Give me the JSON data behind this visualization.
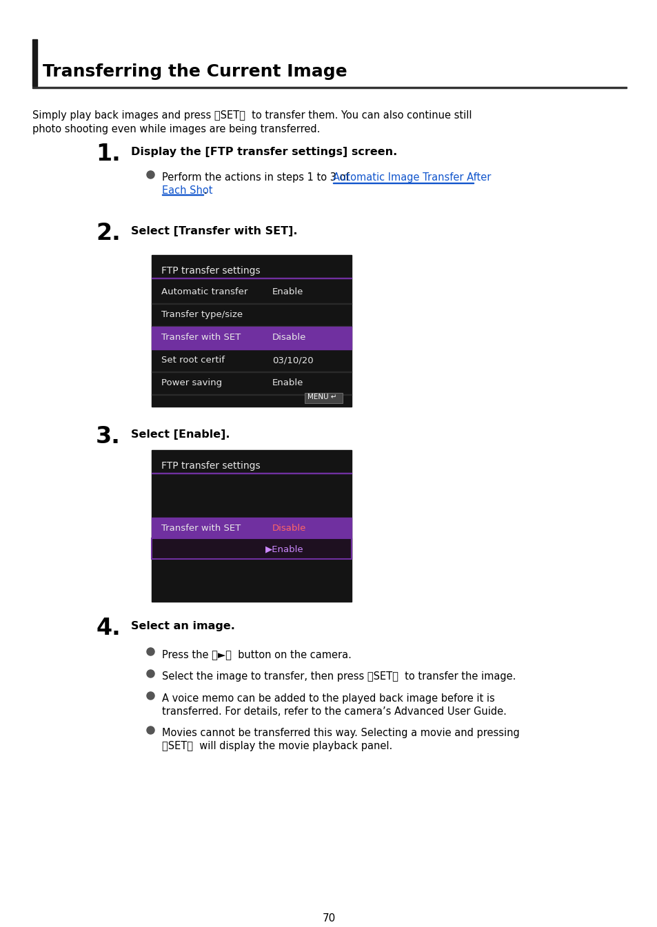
{
  "bg_color": "#ffffff",
  "title": "Transferring the Current Image",
  "page_number": "70",
  "intro_line1": "Simply play back images and press 〈SET〉  to transfer them. You can also continue still",
  "intro_line2": "photo shooting even while images are being transferred.",
  "step1_num": "1.",
  "step1_head": "Display the [FTP transfer settings] screen.",
  "step1_pre": "Perform the actions in steps 1 to 3 of ",
  "step1_link1": "Automatic Image Transfer After",
  "step1_link2": "Each Shot",
  "step1_post": ".",
  "step2_num": "2.",
  "step2_head": "Select [Transfer with SET].",
  "screen1_title": "FTP transfer settings",
  "screen1_rows": [
    {
      "label": "Automatic transfer",
      "value": "Enable",
      "highlight": false
    },
    {
      "label": "Transfer type/size",
      "value": "",
      "highlight": false
    },
    {
      "label": "Transfer with SET",
      "value": "Disable",
      "highlight": true
    },
    {
      "label": "Set root certif",
      "value": "03/10/20",
      "highlight": false
    },
    {
      "label": "Power saving",
      "value": "Enable",
      "highlight": false
    }
  ],
  "step3_num": "3.",
  "step3_head": "Select [Enable].",
  "screen2_title": "FTP transfer settings",
  "screen2_row3_label": "Transfer with SET",
  "screen2_row3_value": "Disable",
  "screen2_row4_value": "▶Enable",
  "step4_num": "4.",
  "step4_head": "Select an image.",
  "step4_b1": "Press the 〈►〉  button on the camera.",
  "step4_b2": "Select the image to transfer, then press 〈SET〉  to transfer the image.",
  "step4_b3a": "A voice memo can be added to the played back image before it is",
  "step4_b3b": "transferred. For details, refer to the camera’s Advanced User Guide.",
  "step4_b4a": "Movies cannot be transferred this way. Selecting a movie and pressing",
  "step4_b4b": "〈SET〉  will display the movie playback panel.",
  "dark_bg": "#141414",
  "purple": "#7030a0",
  "text_white": "#e8e8e8",
  "link_color": "#1155cc",
  "bullet_color": "#555555",
  "row_sep": "#2a2a2a",
  "disable_red": "#ff4444",
  "enable_purple": "#cc88ff"
}
